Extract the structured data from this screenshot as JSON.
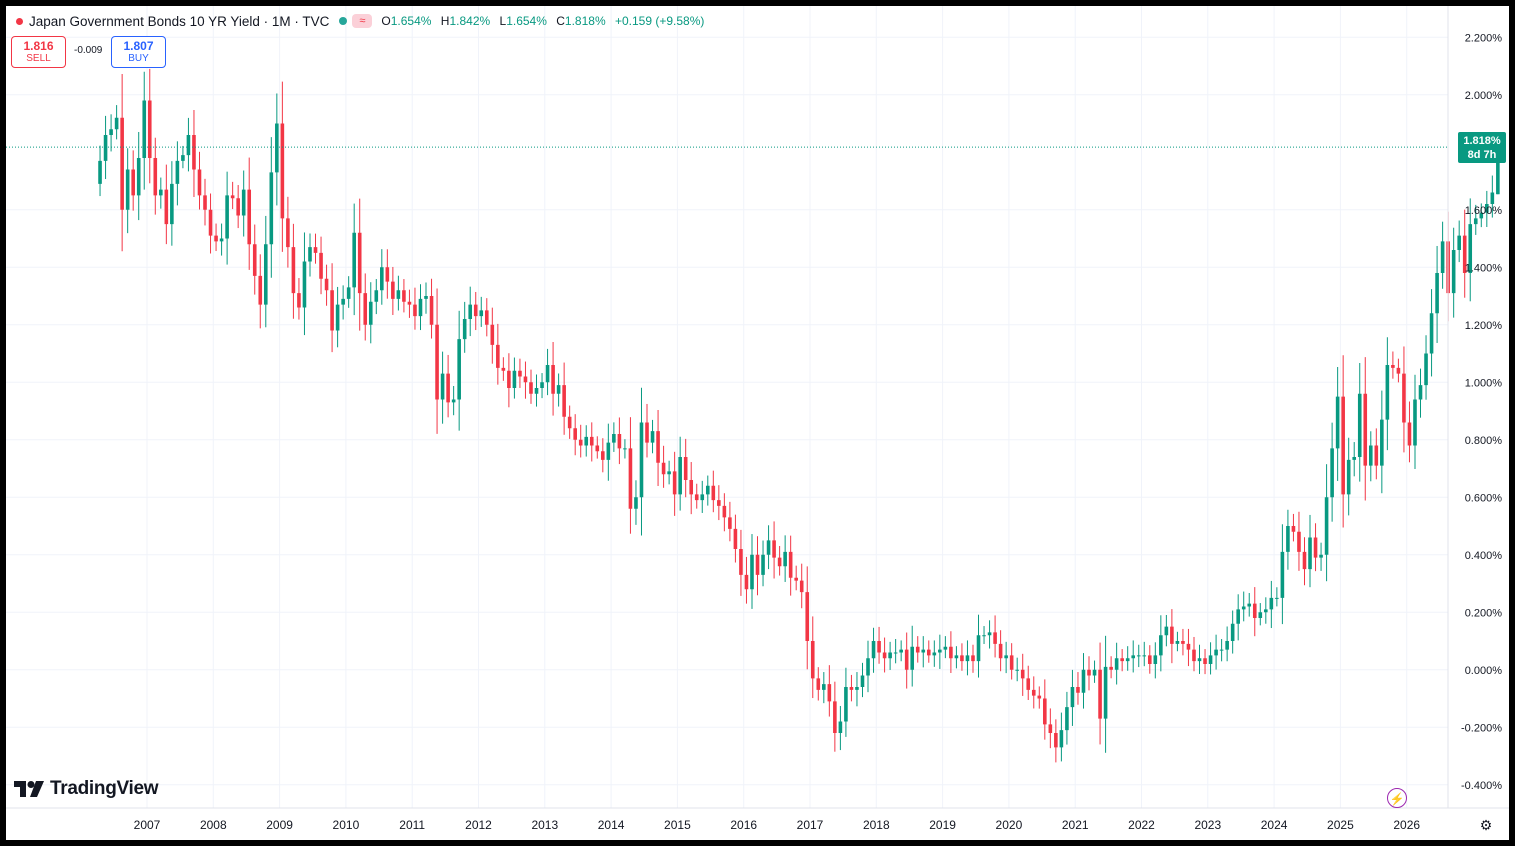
{
  "header": {
    "symbol_title": "Japan Government Bonds 10 YR Yield · 1M · TVC",
    "wave_icon": "≈",
    "ohlc": {
      "o_label": "O",
      "o": "1.654%",
      "h_label": "H",
      "h": "1.842%",
      "l_label": "L",
      "l": "1.654%",
      "c_label": "C",
      "c": "1.818%",
      "change": "+0.159 (+9.58%)"
    }
  },
  "trade": {
    "sell_price": "1.816",
    "sell_label": "SELL",
    "spread": "-0.009",
    "buy_price": "1.807",
    "buy_label": "BUY"
  },
  "last_price": {
    "value": "1.818%",
    "countdown": "8d 7h"
  },
  "branding": {
    "logo_text": "TradingView"
  },
  "icons": {
    "bolt": "lightning-icon",
    "gear": "settings-icon",
    "logo": "tradingview-logo-icon"
  },
  "colors": {
    "up": "#089981",
    "down": "#f23645",
    "grid": "#f0f3fa",
    "text": "#131722"
  },
  "chart_data": {
    "type": "candlestick",
    "title": "Japan Government Bonds 10 YR Yield",
    "interval": "1M",
    "ylim": [
      -0.46,
      2.26
    ],
    "y_ticks": [
      "2.200%",
      "2.000%",
      "1.600%",
      "1.400%",
      "1.200%",
      "1.000%",
      "0.800%",
      "0.600%",
      "0.400%",
      "0.200%",
      "0.000%",
      "-0.200%",
      "-0.400%"
    ],
    "x_ticks": [
      "2007",
      "2008",
      "2009",
      "2010",
      "2011",
      "2012",
      "2013",
      "2014",
      "2015",
      "2016",
      "2017",
      "2018",
      "2019",
      "2020",
      "2021",
      "2022",
      "2023",
      "2024",
      "2025",
      "2026"
    ],
    "grid": true,
    "close_series": {
      "start": "2006-04",
      "values": [
        1.77,
        1.86,
        1.88,
        1.92,
        1.6,
        1.74,
        1.65,
        1.78,
        1.98,
        1.78,
        1.65,
        1.67,
        1.55,
        1.69,
        1.77,
        1.79,
        1.86,
        1.74,
        1.65,
        1.6,
        1.51,
        1.49,
        1.5,
        1.65,
        1.64,
        1.58,
        1.67,
        1.48,
        1.37,
        1.27,
        1.48,
        1.73,
        1.9,
        1.57,
        1.47,
        1.31,
        1.26,
        1.42,
        1.47,
        1.45,
        1.36,
        1.32,
        1.18,
        1.27,
        1.29,
        1.33,
        1.52,
        1.31,
        1.2,
        1.28,
        1.32,
        1.4,
        1.35,
        1.29,
        1.32,
        1.28,
        1.27,
        1.23,
        1.29,
        1.3,
        1.2,
        0.94,
        1.03,
        0.93,
        0.94,
        1.15,
        1.22,
        1.27,
        1.23,
        1.25,
        1.2,
        1.13,
        1.05,
        1.04,
        0.98,
        1.04,
        1.02,
        1.0,
        0.96,
        0.98,
        1.0,
        1.06,
        0.96,
        0.99,
        0.88,
        0.84,
        0.8,
        0.78,
        0.81,
        0.78,
        0.76,
        0.73,
        0.79,
        0.82,
        0.77,
        0.77,
        0.56,
        0.6,
        0.86,
        0.79,
        0.83,
        0.72,
        0.68,
        0.69,
        0.61,
        0.74,
        0.66,
        0.61,
        0.59,
        0.61,
        0.64,
        0.59,
        0.57,
        0.53,
        0.49,
        0.42,
        0.33,
        0.28,
        0.4,
        0.33,
        0.4,
        0.45,
        0.39,
        0.36,
        0.41,
        0.32,
        0.31,
        0.27,
        0.1,
        -0.03,
        -0.07,
        -0.05,
        -0.11,
        -0.22,
        -0.18,
        -0.06,
        -0.07,
        -0.06,
        -0.02,
        0.04,
        0.1,
        0.06,
        0.04,
        0.06,
        0.06,
        0.07,
        0.0,
        0.08,
        0.06,
        0.07,
        0.05,
        0.06,
        0.07,
        0.08,
        0.04,
        0.05,
        0.03,
        0.05,
        0.03,
        0.12,
        0.12,
        0.13,
        0.09,
        0.04,
        0.05,
        0.0,
        0.0,
        -0.03,
        -0.07,
        -0.09,
        -0.1,
        -0.19,
        -0.22,
        -0.27,
        -0.21,
        -0.13,
        -0.06,
        -0.08,
        0.0,
        -0.02,
        0.0,
        -0.17,
        0.01,
        0.0,
        0.04,
        0.03,
        0.04,
        0.05,
        0.05,
        0.05,
        0.02,
        0.05,
        0.12,
        0.15,
        0.09,
        0.1,
        0.09,
        0.07,
        0.03,
        0.04,
        0.02,
        0.05,
        0.07,
        0.07,
        0.1,
        0.16,
        0.21,
        0.22,
        0.23,
        0.18,
        0.2,
        0.21,
        0.25,
        0.25,
        0.41,
        0.5,
        0.48,
        0.41,
        0.35,
        0.46,
        0.39,
        0.4,
        0.6,
        0.77,
        0.95,
        0.61,
        0.73,
        0.74,
        0.96,
        0.71,
        0.78,
        0.71,
        0.87,
        1.06,
        1.05,
        1.03,
        0.86,
        0.78,
        0.94,
        0.99,
        1.1,
        1.24,
        1.38,
        1.49,
        1.31,
        1.46,
        1.51,
        1.38,
        1.55,
        1.57,
        1.59,
        1.62,
        1.66,
        1.818
      ]
    },
    "last_candle": {
      "open": 1.654,
      "high": 1.842,
      "low": 1.654,
      "close": 1.818
    },
    "last_value_label": "1.818%"
  }
}
